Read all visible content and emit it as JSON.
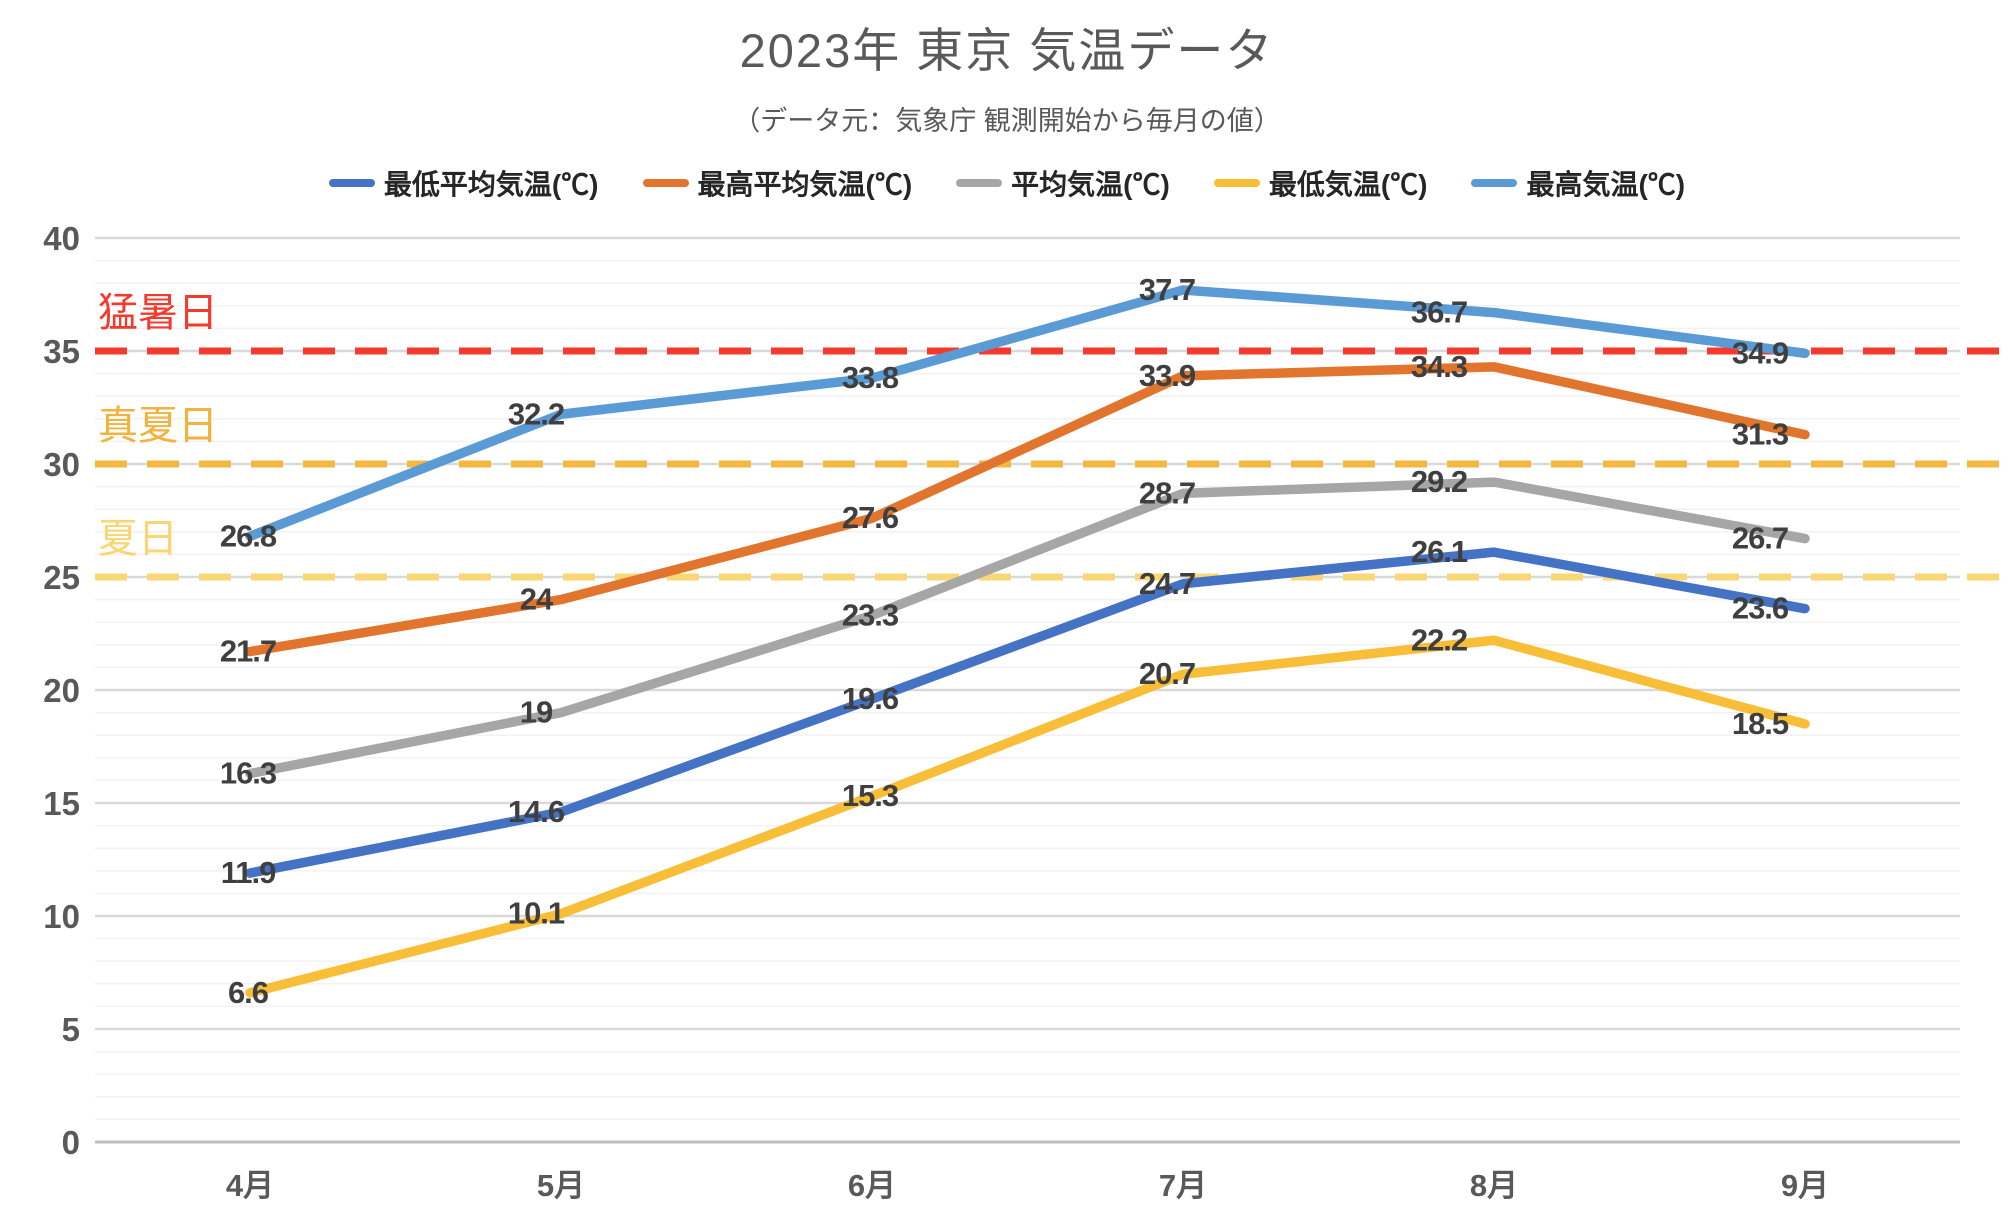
{
  "title": "2023年 東京 気温データ",
  "subtitle": "（データ元：気象庁 観測開始から毎月の値）",
  "chart_data": {
    "type": "line",
    "title": "2023年 東京 気温データ",
    "subtitle": "（データ元：気象庁 観測開始から毎月の値）",
    "categories": [
      "4月",
      "5月",
      "6月",
      "7月",
      "8月",
      "9月"
    ],
    "series": [
      {
        "name": "最低平均気温(℃)",
        "key": "min-avg-temp",
        "color": "#4472C4",
        "values": [
          11.9,
          14.6,
          19.6,
          24.7,
          26.1,
          23.6
        ]
      },
      {
        "name": "最高平均気温(℃)",
        "key": "max-avg-temp",
        "color": "#E2752E",
        "values": [
          21.7,
          24,
          27.6,
          33.9,
          34.3,
          31.3
        ]
      },
      {
        "name": "平均気温(℃)",
        "key": "avg-temp",
        "color": "#A6A6A6",
        "values": [
          16.3,
          19,
          23.3,
          28.7,
          29.2,
          26.7
        ]
      },
      {
        "name": "最低気温(℃)",
        "key": "min-temp",
        "color": "#F9BE38",
        "values": [
          6.6,
          10.1,
          15.3,
          20.7,
          22.2,
          18.5
        ]
      },
      {
        "name": "最高気温(℃)",
        "key": "max-temp",
        "color": "#5B9BD5",
        "values": [
          26.8,
          32.2,
          33.8,
          37.7,
          36.7,
          34.9
        ]
      }
    ],
    "reference_lines": [
      {
        "label": "猛暑日",
        "key": "extremely-hot-day",
        "value": 35,
        "color": "#F43A2D",
        "label_color": "#F43A2D"
      },
      {
        "label": "真夏日",
        "key": "midsummer-day",
        "value": 30,
        "color": "#F4B73F",
        "label_color": "#F2B23C"
      },
      {
        "label": "夏日",
        "key": "summer-day",
        "value": 25,
        "color": "#FBD674",
        "label_color": "#FAD571"
      }
    ],
    "ylim": [
      0,
      40
    ],
    "y_major_ticks": [
      0,
      5,
      10,
      15,
      20,
      25,
      30,
      35,
      40
    ],
    "y_minor_step": 1,
    "grid": true,
    "legend_position": "top",
    "data_labels": true
  },
  "colors": {
    "title_text": "#595959",
    "axis_text": "#595959",
    "data_label_text": "#3f3f3f",
    "major_grid": "#D9D9D9",
    "minor_grid": "#F2F2F2",
    "zero_line": "#BFBFBF",
    "background": "#FFFFFF"
  }
}
